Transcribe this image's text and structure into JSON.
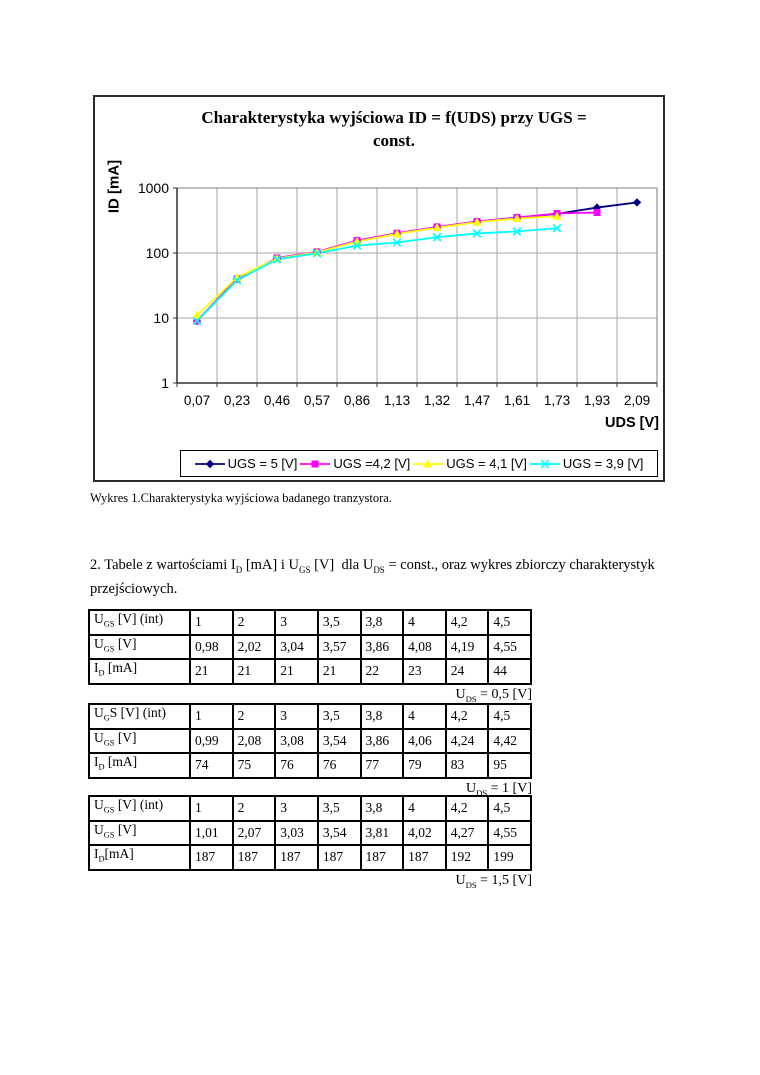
{
  "chart": {
    "title_line1": "Charakterystyka wyjściowa ID = f(UDS) przy UGS =",
    "title_line2": "const.",
    "ylabel": "ID [mA]",
    "xlabel": "UDS [V]"
  },
  "chart_data": {
    "type": "line",
    "title": "Charakterystyka wyjściowa ID = f(UDS) przy UGS = const.",
    "xlabel": "UDS [V]",
    "ylabel": "ID [mA]",
    "y_scale": "log",
    "ylim": [
      1,
      1000
    ],
    "yticks": [
      1000,
      100,
      10,
      1
    ],
    "grid": true,
    "legend_position": "bottom",
    "x_categories": [
      "0,07",
      "0,23",
      "0,46",
      "0,57",
      "0,86",
      "1,13",
      "1,32",
      "1,47",
      "1,61",
      "1,73",
      "1,93",
      "2,09"
    ],
    "x_values": [
      0.07,
      0.23,
      0.46,
      0.57,
      0.86,
      1.13,
      1.32,
      1.47,
      1.61,
      1.73,
      1.93,
      2.09
    ],
    "series": [
      {
        "name": "UGS = 5 [V]",
        "color": "#000080",
        "marker": "diamond",
        "values": [
          9,
          40,
          83,
          103,
          155,
          200,
          250,
          305,
          350,
          400,
          500,
          600
        ]
      },
      {
        "name": "UGS =4,2 [V]",
        "color": "#FF00FF",
        "marker": "square",
        "values": [
          9,
          40,
          84,
          104,
          155,
          202,
          252,
          305,
          352,
          405,
          420,
          null
        ]
      },
      {
        "name": "UGS = 4,1 [V]",
        "color": "#FFFF00",
        "marker": "triangle",
        "values": [
          11,
          42,
          82,
          102,
          150,
          197,
          246,
          298,
          340,
          368,
          null,
          null
        ]
      },
      {
        "name": "UGS = 3,9 [V]",
        "color": "#00FFFF",
        "marker": "x",
        "values": [
          9,
          38,
          80,
          99,
          130,
          145,
          175,
          200,
          215,
          240,
          null,
          null
        ]
      }
    ]
  },
  "figure_caption": "Wykres 1.Charakterystyka wyjściowa badanego tranzystora.",
  "paragraph": [
    {
      "t": "2. Tabele z wartościami I"
    },
    {
      "t": "D",
      "sub": true
    },
    {
      "t": " [mA] i U"
    },
    {
      "t": "GS",
      "sub": true
    },
    {
      "t": " [V]  dla U"
    },
    {
      "t": "DS",
      "sub": true
    },
    {
      "t": " = const., oraz wykres zbiorczy charakterystyk przejściowych."
    }
  ],
  "tables": [
    {
      "rows": [
        {
          "label": {
            "pre": "U",
            "sub": "GS",
            "post": " [V] (int)"
          },
          "values": [
            "1",
            "2",
            "3",
            "3,5",
            "3,8",
            "4",
            "4,2",
            "4,5"
          ]
        },
        {
          "label": {
            "pre": "U",
            "sub": "GS",
            "post": " [V]"
          },
          "values": [
            "0,98",
            "2,02",
            "3,04",
            "3,57",
            "3,86",
            "4,08",
            "4,19",
            "4,55"
          ]
        },
        {
          "label": {
            "pre": "I",
            "sub": "D",
            "post": " [mA]"
          },
          "values": [
            "21",
            "21",
            "21",
            "21",
            "22",
            "23",
            "24",
            "44"
          ]
        }
      ],
      "caption": [
        {
          "t": "U"
        },
        {
          "t": "DS",
          "sub": true
        },
        {
          "t": " = 0,5 [V]"
        }
      ]
    },
    {
      "rows": [
        {
          "label": {
            "pre": "U",
            "sub": "G",
            "post": "S [V] (int)"
          },
          "values": [
            "1",
            "2",
            "3",
            "3,5",
            "3,8",
            "4",
            "4,2",
            "4,5"
          ]
        },
        {
          "label": {
            "pre": "U",
            "sub": "GS",
            "post": " [V]"
          },
          "values": [
            "0,99",
            "2,08",
            "3,08",
            "3,54",
            "3,86",
            "4,06",
            "4,24",
            "4,42"
          ]
        },
        {
          "label": {
            "pre": "I",
            "sub": "D",
            "post": " [mA]"
          },
          "values": [
            "74",
            "75",
            "76",
            "76",
            "77",
            "79",
            "83",
            "95"
          ]
        }
      ],
      "caption": [
        {
          "t": "U"
        },
        {
          "t": "DS",
          "sub": true
        },
        {
          "t": " = 1 [V]"
        }
      ]
    },
    {
      "rows": [
        {
          "label": {
            "pre": "U",
            "sub": "GS",
            "post": " [V] (int)"
          },
          "values": [
            "1",
            "2",
            "3",
            "3,5",
            "3,8",
            "4",
            "4,2",
            "4,5"
          ]
        },
        {
          "label": {
            "pre": "U",
            "sub": "GS",
            "post": " [V]"
          },
          "values": [
            "1,01",
            "2,07",
            "3,03",
            "3,54",
            "3,81",
            "4,02",
            "4,27",
            "4,55"
          ]
        },
        {
          "label": {
            "pre": "I",
            "sub": "D",
            "post": "[mA]"
          },
          "values": [
            "187",
            "187",
            "187",
            "187",
            "187",
            "187",
            "192",
            "199"
          ]
        }
      ],
      "caption": [
        {
          "t": "U"
        },
        {
          "t": "DS",
          "sub": true
        },
        {
          "t": " = 1,5 [V]"
        }
      ]
    }
  ]
}
